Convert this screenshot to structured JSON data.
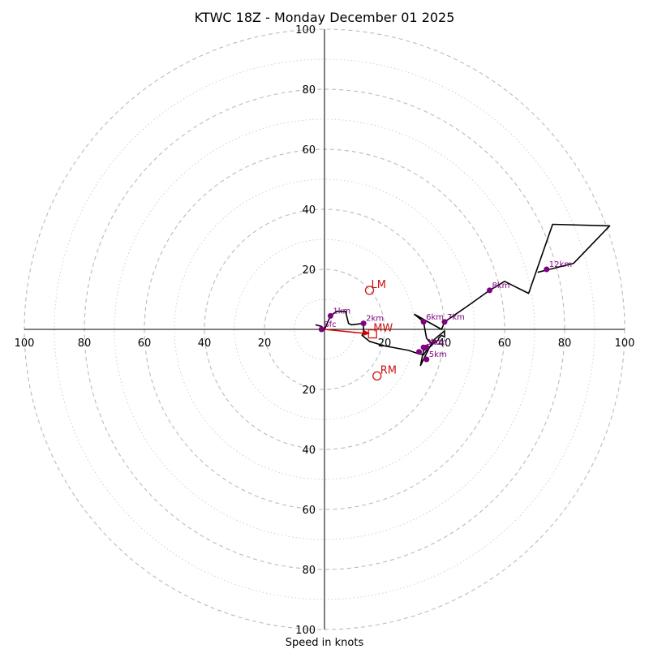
{
  "colors": {
    "ring_major": "#bbbbbb",
    "ring_minor": "#cccccc",
    "axis": "#000000",
    "trace": "#000000",
    "marker": "#800080",
    "storm": "#cc1111",
    "mean_wind_arrow": "#dd0000"
  },
  "chart_data": {
    "type": "hodograph",
    "title": "KTWC 18Z - Monday December 01 2025",
    "xlabel": "Speed in knots",
    "range_max": 100,
    "ring_major_step": 20,
    "ring_minor_step": 10,
    "tick_values": [
      20,
      40,
      60,
      80,
      100
    ],
    "tick_labels": [
      "20",
      "40",
      "60",
      "80",
      "100"
    ],
    "hodograph_trace": [
      [
        -3,
        1.5
      ],
      [
        -1,
        1
      ],
      [
        0,
        0
      ],
      [
        2,
        4.5
      ],
      [
        4,
        6
      ],
      [
        7,
        6
      ],
      [
        8,
        2
      ],
      [
        9,
        1.5
      ],
      [
        13,
        2
      ],
      [
        13,
        -1
      ],
      [
        12.5,
        -2
      ],
      [
        15,
        -4
      ],
      [
        20,
        -5.5
      ],
      [
        28,
        -7
      ],
      [
        31,
        -8
      ],
      [
        33,
        -8.5
      ],
      [
        34,
        -7
      ],
      [
        35,
        -6
      ],
      [
        36,
        -5
      ],
      [
        37,
        -4
      ],
      [
        38,
        -3.5
      ],
      [
        38,
        -3
      ],
      [
        39,
        -2
      ],
      [
        40,
        -2.5
      ],
      [
        40,
        -0.5
      ],
      [
        37,
        -3
      ],
      [
        36,
        -4
      ],
      [
        35,
        -6
      ],
      [
        33,
        -7
      ],
      [
        32,
        -12
      ],
      [
        35,
        -6
      ],
      [
        36,
        -5
      ],
      [
        34,
        -3
      ],
      [
        33,
        2.5
      ],
      [
        30,
        5
      ],
      [
        39,
        0
      ],
      [
        40,
        2.5
      ],
      [
        48,
        8
      ],
      [
        55,
        13
      ],
      [
        60,
        16
      ],
      [
        65,
        13.5
      ],
      [
        68,
        12
      ],
      [
        76,
        35
      ],
      [
        95,
        34.5
      ],
      [
        83,
        22
      ],
      [
        75,
        20
      ],
      [
        71,
        19
      ]
    ],
    "height_markers": [
      {
        "label": "Sfc",
        "u": -1,
        "v": 0
      },
      {
        "label": "1km",
        "u": 2,
        "v": 4.5
      },
      {
        "label": "2km",
        "u": 13,
        "v": 2
      },
      {
        "label": "3km",
        "u": 33,
        "v": -6
      },
      {
        "label": "4km",
        "u": 34,
        "v": -6
      },
      {
        "label": "5km",
        "u": 34,
        "v": -10
      },
      {
        "label": "6km",
        "u": 33,
        "v": 2.5
      },
      {
        "label": "7km",
        "u": 40,
        "v": 2.5
      },
      {
        "label": "8km",
        "u": 55,
        "v": 13
      },
      {
        "label": "12km",
        "u": 74,
        "v": 20
      }
    ],
    "extra_marker": {
      "u": 31.5,
      "v": -7.5
    },
    "storm_motion": {
      "LM": {
        "label": "LM",
        "u": 15,
        "v": 13
      },
      "RM": {
        "label": "RM",
        "u": 17.5,
        "v": -15.5
      },
      "MW": {
        "label": "MW",
        "u": 16,
        "v": -1.5
      }
    }
  }
}
